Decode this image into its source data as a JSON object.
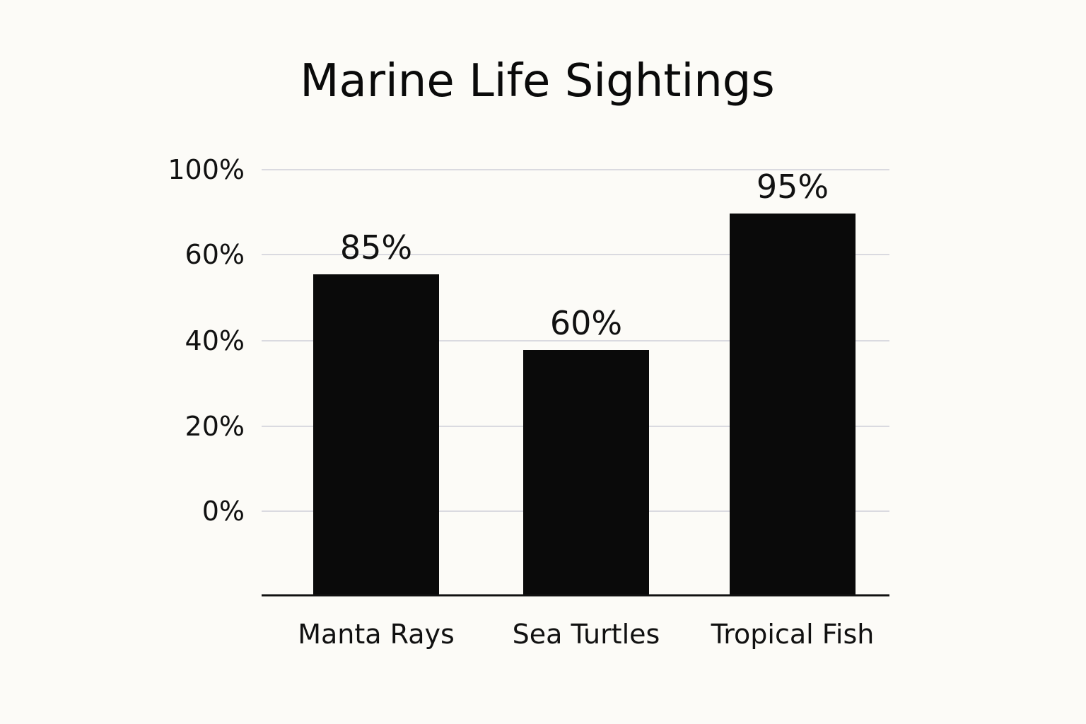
{
  "chart_data": {
    "type": "bar",
    "title": "Marine Life Sightings",
    "categories": [
      "Manta Rays",
      "Sea Turtles",
      "Tropical Fish"
    ],
    "values": [
      85,
      60,
      95
    ],
    "value_labels": [
      "85%",
      "60%",
      "95%"
    ],
    "y_ticks": [
      {
        "value": 0,
        "label": "0%"
      },
      {
        "value": 20,
        "label": "20%"
      },
      {
        "value": 40,
        "label": "40%"
      },
      {
        "value": 60,
        "label": "60%"
      },
      {
        "value": 100,
        "label": "100%"
      }
    ],
    "bar_color": "#0a0a0a",
    "grid": true,
    "legend": "none"
  }
}
